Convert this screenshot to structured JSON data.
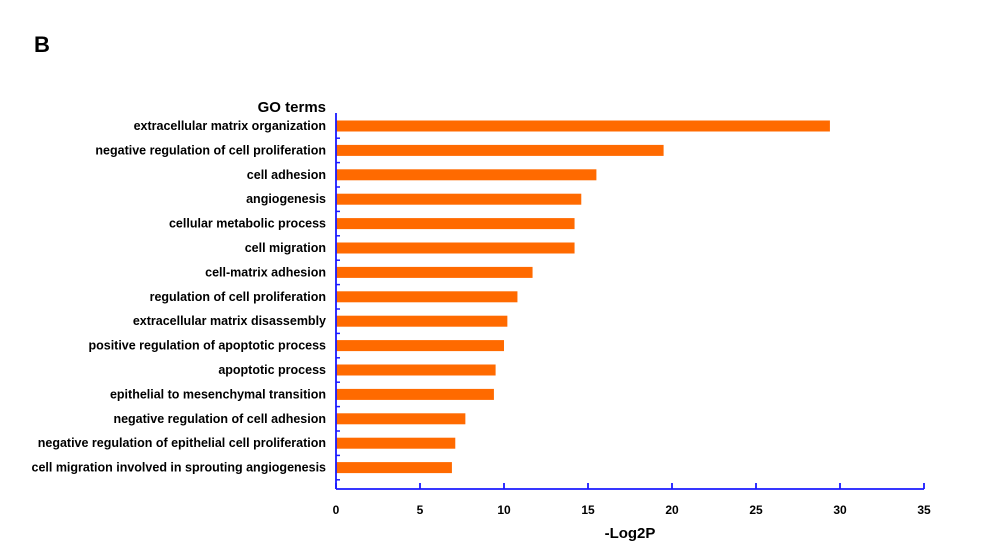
{
  "panel_label": "B",
  "chart_data": {
    "type": "bar",
    "orientation": "horizontal",
    "title": "",
    "categories": [
      "extracellular matrix organization",
      "negative regulation of cell proliferation",
      "cell adhesion",
      "angiogenesis",
      "cellular metabolic process",
      "cell migration",
      "cell-matrix adhesion",
      "regulation of cell proliferation",
      "extracellular matrix disassembly",
      "positive regulation of apoptotic process",
      "apoptotic process",
      "epithelial to mesenchymal transition",
      "negative regulation of cell adhesion",
      "negative regulation of epithelial cell proliferation",
      "cell migration involved in sprouting angiogenesis"
    ],
    "values": [
      29.4,
      19.5,
      15.5,
      14.6,
      14.2,
      14.2,
      11.7,
      10.8,
      10.2,
      10.0,
      9.5,
      9.4,
      7.7,
      7.1,
      6.9
    ],
    "ylabel": "GO terms",
    "xlabel": "-Log2P",
    "xlim": [
      0,
      35
    ],
    "xticks": [
      "0",
      "5",
      "10",
      "15",
      "20",
      "25",
      "30",
      "35"
    ],
    "bar_color": "#ff6a00",
    "axis_color": "#1a1aff",
    "grid": false,
    "legend": "none"
  }
}
